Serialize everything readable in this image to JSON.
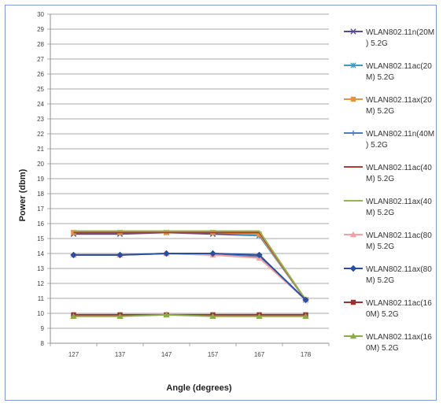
{
  "chart_data": {
    "type": "line",
    "title": "",
    "xlabel": "Angle (degrees)",
    "ylabel": "Power (dbm)",
    "x": [
      127,
      137,
      147,
      157,
      167,
      178
    ],
    "ylim": [
      8,
      30
    ],
    "yticks": [
      8,
      9,
      10,
      11,
      12,
      13,
      14,
      15,
      16,
      17,
      18,
      19,
      20,
      21,
      22,
      23,
      24,
      25,
      26,
      27,
      28,
      29,
      30
    ],
    "grid": true,
    "legend": "right",
    "series": [
      {
        "name": "WLAN802.11n(20M) 5.2G",
        "label_lines": [
          "WLAN802.11n(20M",
          ") 5.2G"
        ],
        "color": "#5b4a9c",
        "marker": "x",
        "values": [
          15.3,
          15.3,
          15.4,
          15.3,
          15.2,
          10.9
        ]
      },
      {
        "name": "WLAN802.11ac(20M) 5.2G",
        "label_lines": [
          "WLAN802.11ac(20",
          "M) 5.2G"
        ],
        "color": "#3d9bc4",
        "marker": "star",
        "values": [
          15.4,
          15.4,
          15.4,
          15.4,
          15.2,
          10.9
        ]
      },
      {
        "name": "WLAN802.11ax(20M) 5.2G",
        "label_lines": [
          "WLAN802.11ax(20",
          "M) 5.2G"
        ],
        "color": "#e8923c",
        "marker": "square",
        "values": [
          15.4,
          15.4,
          15.4,
          15.4,
          15.3,
          10.9
        ]
      },
      {
        "name": "WLAN802.11n(40M) 5.2G",
        "label_lines": [
          "WLAN802.11n(40M",
          ") 5.2G"
        ],
        "color": "#4d7dc4",
        "marker": "plus",
        "values": [
          13.9,
          13.9,
          14.0,
          13.9,
          13.8,
          10.9
        ]
      },
      {
        "name": "WLAN802.11ac(40M) 5.2G",
        "label_lines": [
          "WLAN802.11ac(40",
          "M) 5.2G"
        ],
        "color": "#b03a35",
        "marker": "none",
        "values": [
          15.4,
          15.4,
          15.4,
          15.4,
          15.4,
          10.9
        ]
      },
      {
        "name": "WLAN802.11ax(40M) 5.2G",
        "label_lines": [
          "WLAN802.11ax(40",
          "M) 5.2G"
        ],
        "color": "#96b550",
        "marker": "none",
        "values": [
          15.5,
          15.5,
          15.5,
          15.5,
          15.5,
          10.9
        ]
      },
      {
        "name": "WLAN802.11ac(80M) 5.2G",
        "label_lines": [
          "WLAN802.11ac(80",
          "M) 5.2G"
        ],
        "color": "#f2a0a0",
        "marker": "triangle",
        "values": [
          13.9,
          13.9,
          14.0,
          13.9,
          13.7,
          10.9
        ]
      },
      {
        "name": "WLAN802.11ax(80M) 5.2G",
        "label_lines": [
          "WLAN802.11ax(80",
          "M) 5.2G"
        ],
        "color": "#2a4f9e",
        "marker": "diamond",
        "values": [
          13.9,
          13.9,
          14.0,
          14.0,
          13.9,
          10.9
        ]
      },
      {
        "name": "WLAN802.11ac(160M) 5.2G",
        "label_lines": [
          "WLAN802.11ac(16",
          "0M) 5.2G"
        ],
        "color": "#a03030",
        "marker": "square",
        "values": [
          9.9,
          9.9,
          9.9,
          9.9,
          9.9,
          9.9
        ]
      },
      {
        "name": "WLAN802.11ax(160M) 5.2G",
        "label_lines": [
          "WLAN802.11ax(16",
          "0M) 5.2G"
        ],
        "color": "#8aab45",
        "marker": "triangle",
        "values": [
          9.8,
          9.8,
          9.9,
          9.8,
          9.8,
          9.8
        ]
      }
    ]
  }
}
